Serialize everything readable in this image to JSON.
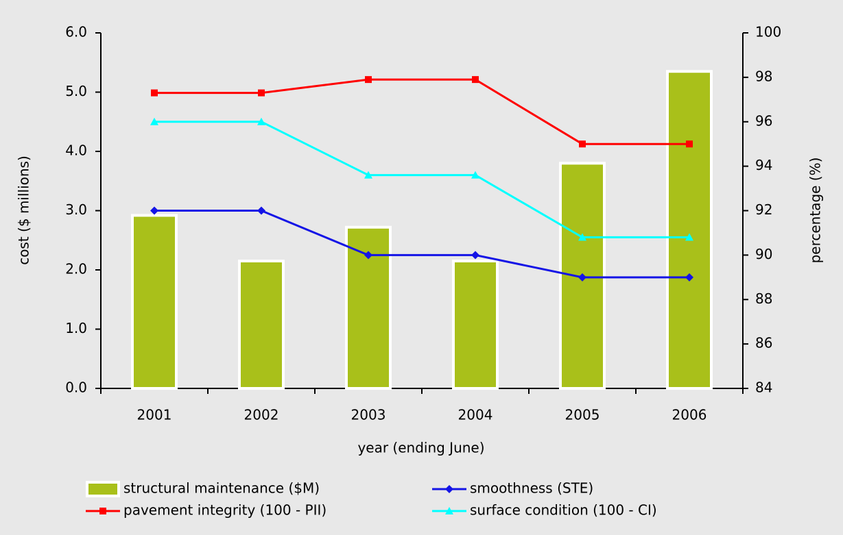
{
  "chart_data": {
    "type": "bar",
    "categories": [
      "2001",
      "2002",
      "2003",
      "2004",
      "2005",
      "2006"
    ],
    "xlabel": "year (ending June)",
    "ylabel": "cost ($ millions)",
    "y2label": "percentage (%)",
    "ylim": [
      0,
      6
    ],
    "yticks": [
      {
        "value": 0,
        "label": "0.0"
      },
      {
        "value": 1,
        "label": "1.0"
      },
      {
        "value": 2,
        "label": "2.0"
      },
      {
        "value": 3,
        "label": "3.0"
      },
      {
        "value": 4,
        "label": "4.0"
      },
      {
        "value": 5,
        "label": "5.0"
      },
      {
        "value": 6,
        "label": "6.0"
      }
    ],
    "y2lim": [
      84,
      100
    ],
    "y2ticks": [
      84,
      86,
      88,
      90,
      92,
      94,
      96,
      98,
      100
    ],
    "series": [
      {
        "name": "structural maintenance ($M)",
        "type": "bar",
        "color": "#a9c01a",
        "values": [
          2.92,
          2.15,
          2.72,
          2.15,
          3.8,
          5.35
        ]
      },
      {
        "name": "smoothness (STE)",
        "type": "line",
        "axis": "y2",
        "marker": "diamond",
        "color": "#1414e6",
        "values": [
          92,
          92,
          90,
          90,
          89,
          89
        ]
      },
      {
        "name": "pavement integrity (100 - PII)",
        "type": "line",
        "axis": "y2",
        "marker": "square",
        "color": "#ff0000",
        "values": [
          97.3,
          97.3,
          97.9,
          97.9,
          95.0,
          95.0
        ]
      },
      {
        "name": "surface condition (100 - CI)",
        "type": "line",
        "axis": "y2",
        "marker": "triangle",
        "color": "#00ffff",
        "values": [
          96.0,
          96.0,
          93.6,
          93.6,
          90.8,
          90.8
        ]
      }
    ]
  }
}
